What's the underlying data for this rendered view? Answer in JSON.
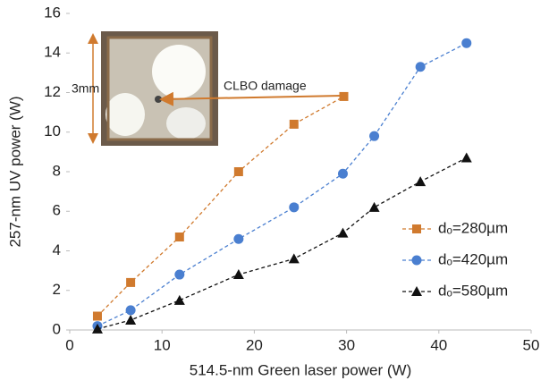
{
  "chart_data": {
    "type": "line",
    "x_label": "514.5-nm Green laser power (W)",
    "y_label": "257-nm UV power (W)",
    "xlim": [
      0,
      50
    ],
    "xticks": [
      0,
      10,
      20,
      30,
      40,
      50
    ],
    "ylim": [
      0,
      16
    ],
    "yticks": [
      0,
      2,
      4,
      6,
      8,
      10,
      12,
      14,
      16
    ],
    "annotations": [
      "3mm",
      "CLBO damage"
    ],
    "legend": "right",
    "series": [
      {
        "name": "dₒ=280µm",
        "color": "#d07a2e",
        "marker": "square",
        "x": [
          3,
          6.6,
          11.9,
          18.3,
          24.3,
          29.7
        ],
        "values": [
          0.7,
          2.4,
          4.7,
          8.0,
          10.4,
          11.8
        ]
      },
      {
        "name": "dₒ=420µm",
        "color": "#4a7fd0",
        "marker": "circle",
        "x": [
          3,
          6.6,
          11.9,
          18.3,
          24.3,
          29.6,
          33,
          38,
          43
        ],
        "values": [
          0.2,
          1.0,
          2.8,
          4.6,
          6.2,
          7.9,
          9.8,
          13.3,
          14.5
        ]
      },
      {
        "name": "dₒ=580µm",
        "color": "#111111",
        "marker": "triangle",
        "x": [
          3,
          6.6,
          11.9,
          18.3,
          24.3,
          29.6,
          33,
          38,
          43
        ],
        "values": [
          0.05,
          0.5,
          1.5,
          2.8,
          3.6,
          4.9,
          6.2,
          7.5,
          8.7
        ]
      }
    ]
  }
}
